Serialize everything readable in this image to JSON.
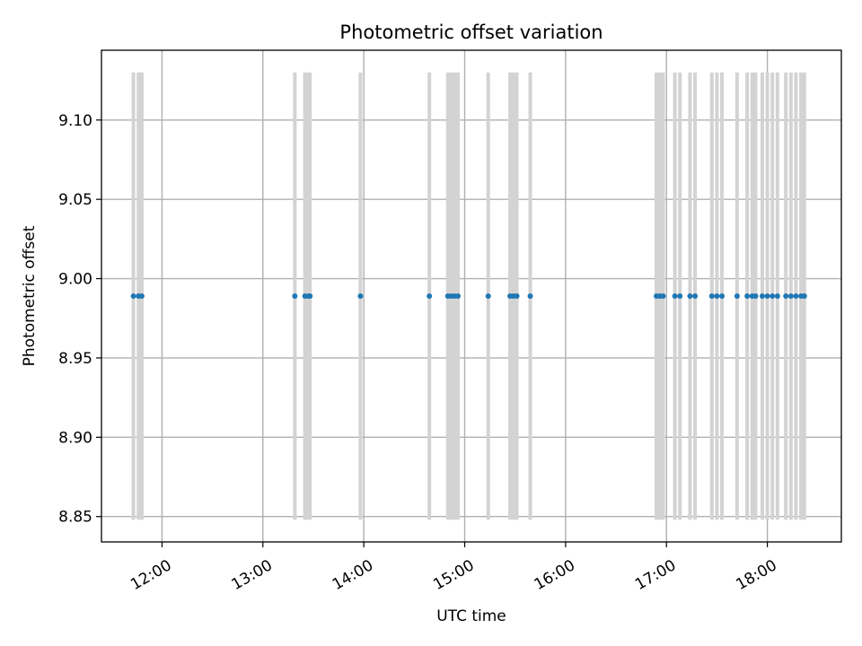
{
  "chart_data": {
    "type": "scatter",
    "title": "Photometric offset variation",
    "xlabel": "UTC time",
    "ylabel": "Photometric offset",
    "x_ticks": [
      "12:00",
      "13:00",
      "14:00",
      "15:00",
      "16:00",
      "17:00",
      "18:00"
    ],
    "y_ticks": [
      "8.85",
      "8.90",
      "8.95",
      "9.00",
      "9.05",
      "9.10"
    ],
    "xlim": [
      "11:24",
      "18:44"
    ],
    "ylim": [
      8.834,
      9.144
    ],
    "grid": true,
    "colors": {
      "points": "#1f77b4",
      "error_bars": "#d3d3d3"
    },
    "series": [
      {
        "x": [
          "11:43",
          "11:46",
          "11:48",
          "13:19",
          "13:25",
          "13:27",
          "13:28",
          "13:58",
          "14:39",
          "14:50",
          "14:52",
          "14:54",
          "14:56",
          "15:14",
          "15:27",
          "15:29",
          "15:31",
          "15:39",
          "16:54",
          "16:56",
          "16:58",
          "17:05",
          "17:08",
          "17:14",
          "17:17",
          "17:27",
          "17:30",
          "17:33",
          "17:42",
          "17:48",
          "17:51",
          "17:53",
          "17:57",
          "18:00",
          "18:03",
          "18:06",
          "18:11",
          "18:14",
          "18:17",
          "18:20",
          "18:22"
        ],
        "y": [
          8.989,
          8.989,
          8.989,
          8.989,
          8.989,
          8.989,
          8.989,
          8.989,
          8.989,
          8.989,
          8.989,
          8.989,
          8.989,
          8.989,
          8.989,
          8.989,
          8.989,
          8.989,
          8.989,
          8.989,
          8.989,
          8.989,
          8.989,
          8.989,
          8.989,
          8.989,
          8.989,
          8.989,
          8.989,
          8.989,
          8.989,
          8.989,
          8.989,
          8.989,
          8.989,
          8.989,
          8.989,
          8.989,
          8.989,
          8.989,
          8.989
        ],
        "error": 0.141
      }
    ]
  }
}
